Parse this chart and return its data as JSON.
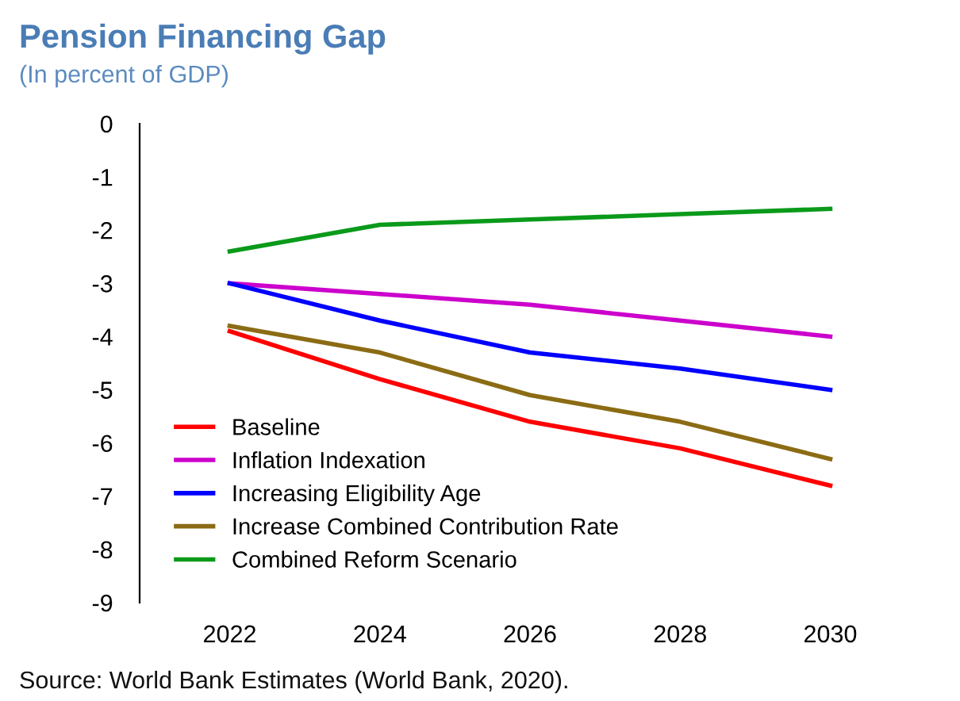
{
  "chart_data": {
    "type": "line",
    "title": "Pension Financing Gap",
    "subtitle": "(In percent of GDP)",
    "categories": [
      "2022",
      "2024",
      "2026",
      "2028",
      "2030"
    ],
    "ylim": [
      -9,
      0
    ],
    "yticks": [
      0,
      -1,
      -2,
      -3,
      -4,
      -5,
      -6,
      -7,
      -8,
      -9
    ],
    "grid": false,
    "legend": "bottom left",
    "marker": "none",
    "line_style": "solid",
    "series": [
      {
        "name": "Baseline",
        "color": "#ff0000",
        "values": [
          -3.9,
          -4.8,
          -5.6,
          -6.1,
          -6.8
        ]
      },
      {
        "name": "Inflation Indexation",
        "color": "#cc00cc",
        "values": [
          -3.0,
          -3.2,
          -3.4,
          -3.7,
          -4.0
        ]
      },
      {
        "name": "Increasing Eligibility Age",
        "color": "#0000ff",
        "values": [
          -3.0,
          -3.7,
          -4.3,
          -4.6,
          -5.0
        ]
      },
      {
        "name": "Increase Combined Contribution Rate",
        "color": "#8b6c14",
        "values": [
          -3.8,
          -4.3,
          -5.1,
          -5.6,
          -6.3
        ]
      },
      {
        "name": "Combined Reform Scenario",
        "color": "#0a9a1a",
        "values": [
          -2.4,
          -1.9,
          -1.8,
          -1.7,
          -1.6
        ]
      }
    ],
    "annotations": [
      "Source: World Bank Estimates (World Bank, 2020)."
    ]
  }
}
